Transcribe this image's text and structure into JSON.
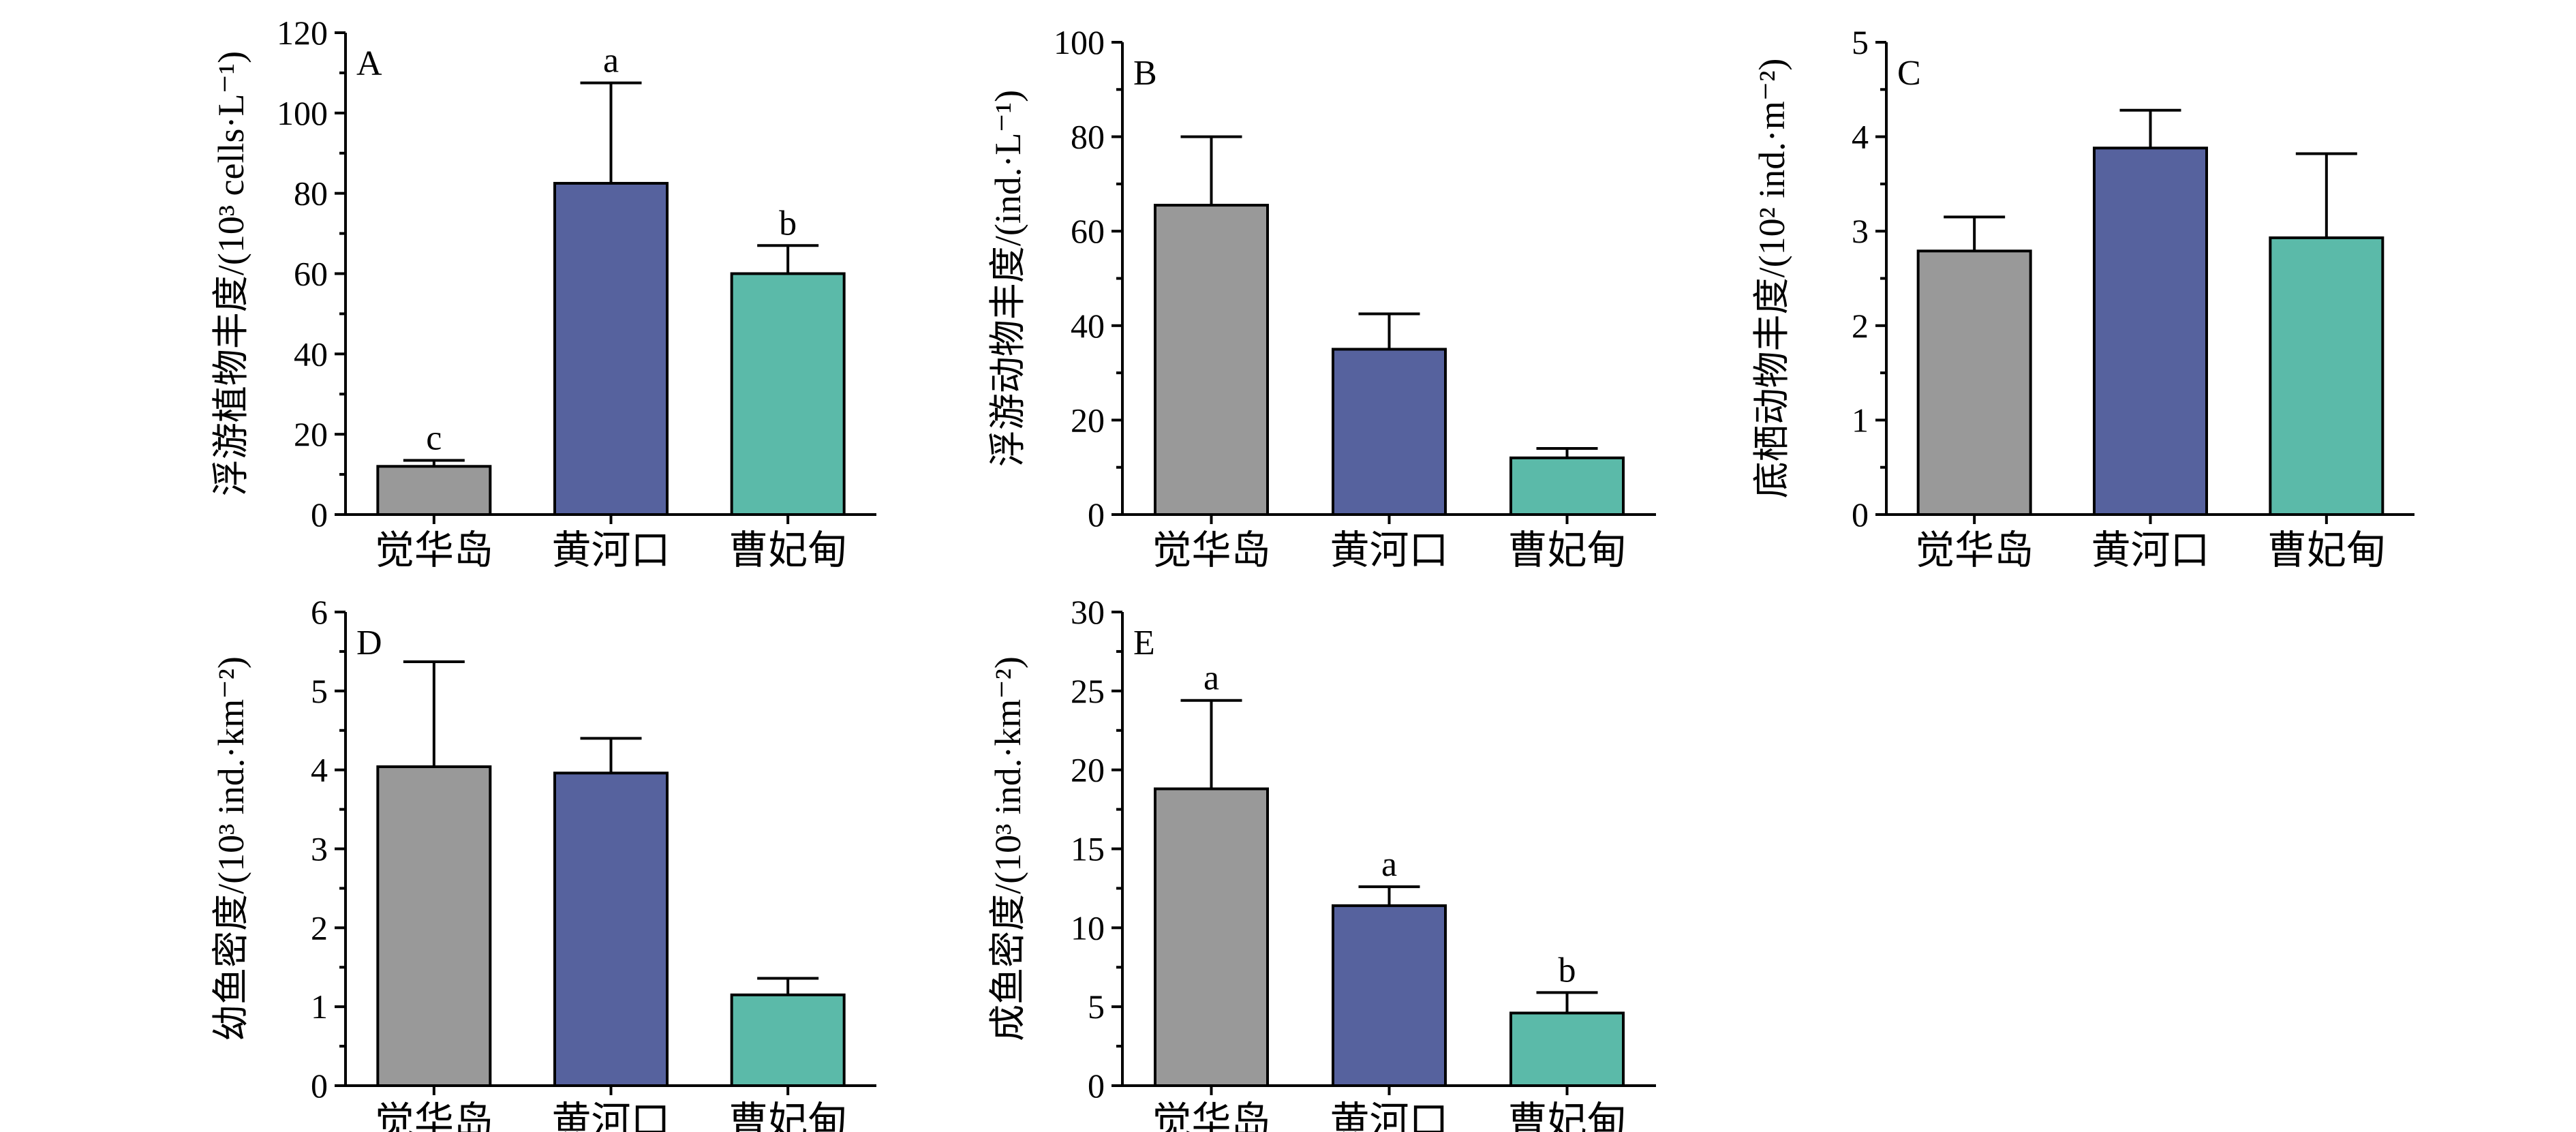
{
  "colors": {
    "党华岛": "#EF8A7B",
    "黄河口": "#56629E",
    "曹妃甸": "#5BBAA9"
  },
  "chart_data": [
    {
      "type": "bar",
      "panel": "A",
      "ylabel": "浮游植物丰度/(10³ cells·L⁻¹)",
      "ylim": [
        0,
        120
      ],
      "ticks": [
        0,
        20,
        40,
        60,
        80,
        100,
        120
      ],
      "categories": [
        "觉华岛",
        "黄河口",
        "曹妃甸"
      ],
      "values": [
        12,
        82.5,
        60
      ],
      "errors": [
        1.5,
        25,
        7
      ],
      "letters": [
        "c",
        "a",
        "b"
      ]
    },
    {
      "type": "bar",
      "panel": "B",
      "ylabel": "浮游动物丰度/(ind.·L⁻¹)",
      "ylim": [
        0,
        100
      ],
      "ticks": [
        0,
        20,
        40,
        60,
        80,
        100
      ],
      "categories": [
        "觉华岛",
        "黄河口",
        "曹妃甸"
      ],
      "values": [
        65.5,
        35,
        12
      ],
      "errors": [
        14.5,
        7.5,
        2
      ],
      "letters": [
        "",
        "",
        ""
      ]
    },
    {
      "type": "bar",
      "panel": "C",
      "ylabel": "底栖动物丰度/(10² ind.·m⁻²)",
      "ylim": [
        0,
        5
      ],
      "ticks": [
        0,
        1,
        2,
        3,
        4,
        5
      ],
      "categories": [
        "觉华岛",
        "黄河口",
        "曹妃甸"
      ],
      "values": [
        2.79,
        3.88,
        2.93
      ],
      "errors": [
        0.36,
        0.4,
        0.89
      ],
      "letters": [
        "",
        "",
        ""
      ]
    },
    {
      "type": "bar",
      "panel": "D",
      "ylabel": "幼鱼密度/(10³ ind.·km⁻²)",
      "ylim": [
        0,
        6
      ],
      "ticks": [
        0,
        1,
        2,
        3,
        4,
        5,
        6
      ],
      "categories": [
        "觉华岛",
        "黄河口",
        "曹妃甸"
      ],
      "values": [
        4.04,
        3.96,
        1.15
      ],
      "errors": [
        1.33,
        0.44,
        0.21
      ],
      "letters": [
        "",
        "",
        ""
      ]
    },
    {
      "type": "bar",
      "panel": "E",
      "ylabel": "成鱼密度/(10³ ind.·km⁻²)",
      "ylim": [
        0,
        30
      ],
      "ticks": [
        0,
        5,
        10,
        15,
        20,
        25,
        30
      ],
      "categories": [
        "觉华岛",
        "黄河口",
        "曹妃甸"
      ],
      "values": [
        18.8,
        11.4,
        4.6
      ],
      "errors": [
        5.6,
        1.2,
        1.3
      ],
      "letters": [
        "a",
        "a",
        "b"
      ]
    }
  ]
}
